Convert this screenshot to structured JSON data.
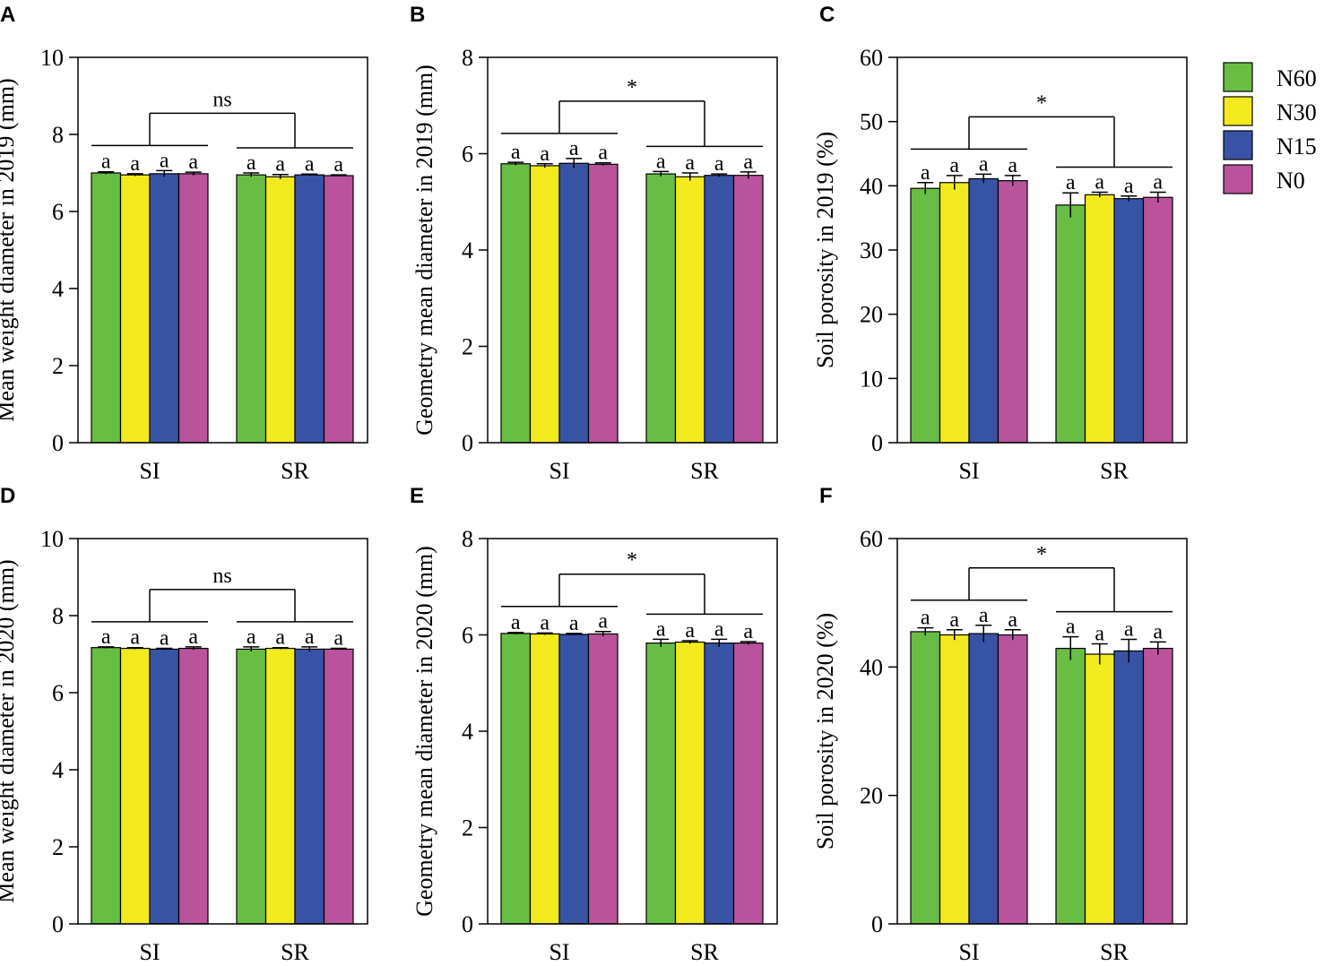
{
  "colors": {
    "N60": "#69bd45",
    "N30": "#f2ea1d",
    "N15": "#3953a4",
    "N0": "#b9539b"
  },
  "legend": [
    "N60",
    "N30",
    "N15",
    "N0"
  ],
  "chart_data": [
    {
      "type": "bar",
      "panel": "A",
      "ylabel": "Mean weight diameter in 2019 (mm)",
      "ylim": [
        0,
        10
      ],
      "yticks": [
        0,
        2,
        4,
        6,
        8,
        10
      ],
      "categories": [
        "SI",
        "SR"
      ],
      "series": [
        {
          "name": "N60",
          "values": [
            7.0,
            6.95
          ],
          "err": [
            0.03,
            0.05
          ]
        },
        {
          "name": "N30",
          "values": [
            6.95,
            6.9
          ],
          "err": [
            0.03,
            0.06
          ]
        },
        {
          "name": "N15",
          "values": [
            6.98,
            6.95
          ],
          "err": [
            0.08,
            0.02
          ]
        },
        {
          "name": "N0",
          "values": [
            6.98,
            6.93
          ],
          "err": [
            0.04,
            0.02
          ]
        }
      ],
      "letters": [
        [
          "a",
          "a",
          "a",
          "a"
        ],
        [
          "a",
          "a",
          "a",
          "a"
        ]
      ],
      "significance": "ns"
    },
    {
      "type": "bar",
      "panel": "B",
      "ylabel": "Geometry mean diameter in 2019 (mm)",
      "ylim": [
        0,
        8
      ],
      "yticks": [
        0,
        2,
        4,
        6,
        8
      ],
      "categories": [
        "SI",
        "SR"
      ],
      "series": [
        {
          "name": "N60",
          "values": [
            5.79,
            5.58
          ],
          "err": [
            0.03,
            0.05
          ]
        },
        {
          "name": "N30",
          "values": [
            5.75,
            5.52
          ],
          "err": [
            0.04,
            0.08
          ]
        },
        {
          "name": "N15",
          "values": [
            5.8,
            5.55
          ],
          "err": [
            0.1,
            0.03
          ]
        },
        {
          "name": "N0",
          "values": [
            5.78,
            5.55
          ],
          "err": [
            0.03,
            0.07
          ]
        }
      ],
      "letters": [
        [
          "a",
          "a",
          "a",
          "a"
        ],
        [
          "a",
          "a",
          "a",
          "a"
        ]
      ],
      "significance": "*"
    },
    {
      "type": "bar",
      "panel": "C",
      "ylabel": "Soil porosity in 2019 (%)",
      "ylim": [
        0,
        60
      ],
      "yticks": [
        0,
        10,
        20,
        30,
        40,
        50,
        60
      ],
      "categories": [
        "SI",
        "SR"
      ],
      "series": [
        {
          "name": "N60",
          "values": [
            39.6,
            37.0
          ],
          "err": [
            0.9,
            1.9
          ]
        },
        {
          "name": "N30",
          "values": [
            40.5,
            38.6
          ],
          "err": [
            1.1,
            0.4
          ]
        },
        {
          "name": "N15",
          "values": [
            41.1,
            38.0
          ],
          "err": [
            0.7,
            0.4
          ]
        },
        {
          "name": "N0",
          "values": [
            40.8,
            38.2
          ],
          "err": [
            0.8,
            0.8
          ]
        }
      ],
      "letters": [
        [
          "a",
          "a",
          "a",
          "a"
        ],
        [
          "a",
          "a",
          "a",
          "a"
        ]
      ],
      "significance": "*"
    },
    {
      "type": "bar",
      "panel": "D",
      "ylabel": "Mean weight diameter in 2020 (mm)",
      "ylim": [
        0,
        10
      ],
      "yticks": [
        0,
        2,
        4,
        6,
        8,
        10
      ],
      "categories": [
        "SI",
        "SR"
      ],
      "series": [
        {
          "name": "N60",
          "values": [
            7.17,
            7.13
          ],
          "err": [
            0.02,
            0.06
          ]
        },
        {
          "name": "N30",
          "values": [
            7.15,
            7.15
          ],
          "err": [
            0.02,
            0.02
          ]
        },
        {
          "name": "N15",
          "values": [
            7.13,
            7.13
          ],
          "err": [
            0.02,
            0.06
          ]
        },
        {
          "name": "N0",
          "values": [
            7.15,
            7.13
          ],
          "err": [
            0.04,
            0.02
          ]
        }
      ],
      "letters": [
        [
          "a",
          "a",
          "a",
          "a"
        ],
        [
          "a",
          "a",
          "a",
          "a"
        ]
      ],
      "significance": "ns"
    },
    {
      "type": "bar",
      "panel": "E",
      "ylabel": "Geometry mean diameter in 2020 (mm)",
      "ylim": [
        0,
        8
      ],
      "yticks": [
        0,
        2,
        4,
        6,
        8
      ],
      "categories": [
        "SI",
        "SR"
      ],
      "series": [
        {
          "name": "N60",
          "values": [
            6.03,
            5.83
          ],
          "err": [
            0.02,
            0.08
          ]
        },
        {
          "name": "N30",
          "values": [
            6.02,
            5.85
          ],
          "err": [
            0.02,
            0.03
          ]
        },
        {
          "name": "N15",
          "values": [
            6.01,
            5.83
          ],
          "err": [
            0.02,
            0.08
          ]
        },
        {
          "name": "N0",
          "values": [
            6.02,
            5.83
          ],
          "err": [
            0.05,
            0.03
          ]
        }
      ],
      "letters": [
        [
          "a",
          "a",
          "a",
          "a"
        ],
        [
          "a",
          "a",
          "a",
          "a"
        ]
      ],
      "significance": "*"
    },
    {
      "type": "bar",
      "panel": "F",
      "ylabel": "Soil porosity in 2020 (%)",
      "ylim": [
        0,
        60
      ],
      "yticks": [
        0,
        20,
        40,
        60
      ],
      "categories": [
        "SI",
        "SR"
      ],
      "series": [
        {
          "name": "N60",
          "values": [
            45.5,
            42.9
          ],
          "err": [
            0.6,
            1.8
          ]
        },
        {
          "name": "N30",
          "values": [
            45.0,
            42.0
          ],
          "err": [
            0.8,
            1.6
          ]
        },
        {
          "name": "N15",
          "values": [
            45.2,
            42.5
          ],
          "err": [
            1.3,
            1.8
          ]
        },
        {
          "name": "N0",
          "values": [
            45.0,
            42.9
          ],
          "err": [
            0.8,
            1.0
          ]
        }
      ],
      "letters": [
        [
          "a",
          "a",
          "a",
          "a"
        ],
        [
          "a",
          "a",
          "a",
          "a"
        ]
      ],
      "significance": "*"
    }
  ]
}
